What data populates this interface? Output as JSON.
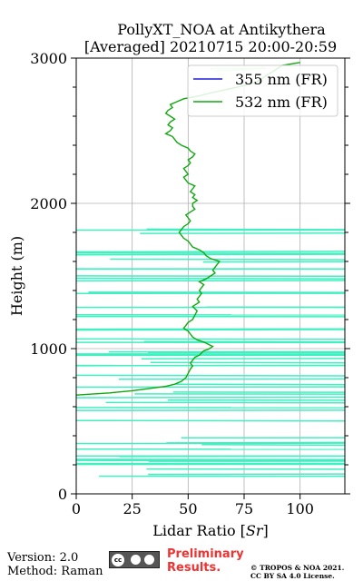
{
  "chart_data": {
    "type": "line",
    "title_line1": "PollyXT_NOA at Antikythera",
    "title_line2": "[Averaged] 20210715 20:00-20:59",
    "xlabel": "Lidar Ratio [",
    "xlabel_italic": "Sr",
    "xlabel_end": "]",
    "ylabel": "Height (m)",
    "xlim": [
      0,
      120
    ],
    "ylim": [
      0,
      3000
    ],
    "xticks": [
      0,
      25,
      50,
      75,
      100
    ],
    "xtick_labels": [
      "0",
      "25",
      "50",
      "75",
      "100"
    ],
    "yticks": [
      0,
      1000,
      2000,
      3000
    ],
    "ytick_labels": [
      "0",
      "1000",
      "2000",
      "3000"
    ],
    "grid": true,
    "legend": {
      "placement": "top-right",
      "entries": [
        "355 nm (FR)",
        "532 nm (FR)"
      ]
    },
    "series": [
      {
        "name": "355 nm (FR)",
        "color": "#1f1fd6",
        "x": [],
        "y": []
      },
      {
        "name": "532 nm (FR)",
        "color": "#10a810",
        "x": [
          0,
          15,
          25,
          30,
          35,
          40,
          44,
          47,
          49,
          50,
          51,
          52,
          51,
          52,
          53,
          55,
          56,
          57,
          59,
          60,
          61,
          59,
          57,
          54,
          52,
          51,
          50,
          48,
          49,
          50,
          52,
          53,
          54,
          52,
          55,
          54,
          55,
          56,
          55,
          56,
          57,
          55,
          58,
          60,
          62,
          61,
          62,
          63,
          64,
          60,
          58,
          57,
          55,
          52,
          51,
          50,
          48,
          47,
          46,
          47,
          48,
          50,
          51,
          50,
          49,
          51,
          53,
          52,
          52,
          54,
          52,
          53,
          51,
          52,
          53,
          50,
          49,
          48,
          50,
          49,
          48,
          50,
          51,
          50,
          52,
          53,
          51,
          50,
          47,
          45,
          44,
          43,
          40,
          42,
          43,
          41,
          42,
          44,
          42,
          40,
          41,
          43,
          42,
          45,
          48,
          55,
          60,
          66,
          72,
          80,
          92,
          100
        ],
        "y": [
          680,
          695,
          710,
          720,
          730,
          740,
          755,
          775,
          800,
          830,
          860,
          880,
          900,
          920,
          940,
          955,
          970,
          985,
          995,
          1005,
          1015,
          1030,
          1045,
          1060,
          1080,
          1100,
          1120,
          1140,
          1160,
          1180,
          1200,
          1230,
          1260,
          1290,
          1320,
          1340,
          1360,
          1380,
          1400,
          1420,
          1440,
          1460,
          1480,
          1500,
          1520,
          1540,
          1560,
          1580,
          1600,
          1620,
          1640,
          1660,
          1680,
          1700,
          1720,
          1740,
          1760,
          1780,
          1800,
          1820,
          1840,
          1860,
          1880,
          1900,
          1920,
          1940,
          1960,
          1980,
          2000,
          2020,
          2040,
          2060,
          2080,
          2100,
          2120,
          2140,
          2160,
          2180,
          2200,
          2220,
          2240,
          2260,
          2280,
          2300,
          2320,
          2340,
          2360,
          2380,
          2400,
          2420,
          2440,
          2460,
          2480,
          2500,
          2520,
          2540,
          2560,
          2580,
          2600,
          2620,
          2640,
          2660,
          2680,
          2700,
          2720,
          2740,
          2760,
          2780,
          2800,
          2830,
          2950,
          2970
        ]
      }
    ]
  },
  "footer": {
    "version": "Version: 2.0",
    "method": "Method: Raman",
    "cc_text": "cc",
    "preliminary_line1": "Preliminary",
    "preliminary_line2": "Results.",
    "copyright_line1": "© TROPOS & NOA 2021.",
    "copyright_line2": "CC BY SA 4.0 License."
  }
}
